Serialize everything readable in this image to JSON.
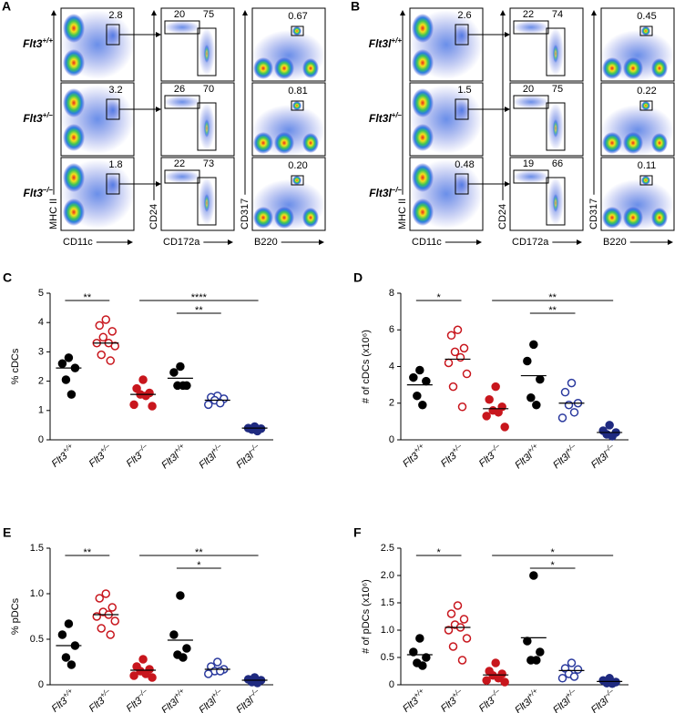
{
  "flow": [
    {
      "panel": "A",
      "genotypes": [
        "Flt3+/+",
        "Flt3+/–",
        "Flt3–/–"
      ],
      "y_labels": [
        "MHC II",
        "CD24",
        "CD317"
      ],
      "x_labels": [
        "CD11c",
        "CD172a",
        "B220"
      ],
      "gates": [
        [
          "2.8",
          "20",
          "75",
          "0.67"
        ],
        [
          "3.2",
          "26",
          "70",
          "0.81"
        ],
        [
          "1.8",
          "22",
          "73",
          "0.20"
        ]
      ]
    },
    {
      "panel": "B",
      "genotypes": [
        "Flt3l+/+",
        "Flt3l+/–",
        "Flt3l–/–"
      ],
      "y_labels": [
        "MHC II",
        "CD24",
        "CD317"
      ],
      "x_labels": [
        "CD11c",
        "CD172a",
        "B220"
      ],
      "gates": [
        [
          "2.6",
          "22",
          "74",
          "0.45"
        ],
        [
          "1.5",
          "20",
          "75",
          "0.22"
        ],
        [
          "0.48",
          "19",
          "66",
          "0.11"
        ]
      ]
    }
  ],
  "chart_data": [
    {
      "type": "dot",
      "panel": "C",
      "y_label": "% cDCs",
      "categories": [
        "Flt3+/+",
        "Flt3+/–",
        "Flt3–/–",
        "Flt3l+/+",
        "Flt3l+/–",
        "Flt3l–/–"
      ],
      "colors": [
        "#000000",
        "#c8161d",
        "#c8161d",
        "#000000",
        "#2b3a9e",
        "#1f2a80"
      ],
      "filled": [
        true,
        false,
        true,
        true,
        false,
        true
      ],
      "values": [
        [
          2.8,
          2.6,
          2.45,
          2.05,
          1.55
        ],
        [
          4.1,
          3.9,
          3.7,
          3.5,
          3.3,
          3.3,
          3.2,
          2.9,
          2.7
        ],
        [
          2.05,
          1.75,
          1.6,
          1.55,
          1.5,
          1.2,
          1.15
        ],
        [
          2.5,
          2.3,
          1.85,
          1.85,
          1.85
        ],
        [
          1.5,
          1.45,
          1.4,
          1.35,
          1.25,
          1.2
        ],
        [
          0.45,
          0.4,
          0.38,
          0.35,
          0.3
        ]
      ],
      "means": [
        2.45,
        3.3,
        1.55,
        2.1,
        1.35,
        0.4
      ],
      "ylim": [
        0,
        5
      ],
      "yticks": [
        0,
        1,
        2,
        3,
        4,
        5
      ],
      "annotations": [
        {
          "text": "**",
          "between": [
            "Flt3+/+",
            "Flt3+/–"
          ]
        },
        {
          "text": "****",
          "between": [
            "Flt3–/–",
            "Flt3l–/–"
          ]
        },
        {
          "text": "**",
          "between": [
            "Flt3l+/+",
            "Flt3l+/–"
          ]
        }
      ]
    },
    {
      "type": "dot",
      "panel": "D",
      "y_label": "# of cDCs (x10⁶)",
      "categories": [
        "Flt3+/+",
        "Flt3+/–",
        "Flt3–/–",
        "Flt3l+/+",
        "Flt3l+/–",
        "Flt3l–/–"
      ],
      "colors": [
        "#000000",
        "#c8161d",
        "#c8161d",
        "#000000",
        "#2b3a9e",
        "#1f2a80"
      ],
      "filled": [
        true,
        false,
        true,
        true,
        false,
        true
      ],
      "values": [
        [
          3.8,
          3.4,
          3.2,
          2.4,
          1.9
        ],
        [
          6.0,
          5.7,
          5.0,
          4.8,
          4.5,
          4.2,
          3.6,
          2.9,
          1.8
        ],
        [
          2.9,
          2.2,
          1.8,
          1.6,
          1.5,
          1.3,
          0.7
        ],
        [
          5.2,
          4.3,
          3.3,
          2.3,
          1.9
        ],
        [
          3.1,
          2.6,
          2.0,
          1.9,
          1.5,
          1.2
        ],
        [
          0.8,
          0.5,
          0.4,
          0.3,
          0.2
        ]
      ],
      "means": [
        3.0,
        4.4,
        1.7,
        3.5,
        2.0,
        0.4
      ],
      "ylim": [
        0,
        8
      ],
      "yticks": [
        0,
        2,
        4,
        6,
        8
      ],
      "annotations": [
        {
          "text": "*",
          "between": [
            "Flt3+/+",
            "Flt3+/–"
          ]
        },
        {
          "text": "**",
          "between": [
            "Flt3–/–",
            "Flt3l–/–"
          ]
        },
        {
          "text": "**",
          "between": [
            "Flt3l+/+",
            "Flt3l+/–"
          ]
        }
      ]
    },
    {
      "type": "dot",
      "panel": "E",
      "y_label": "% pDCs",
      "categories": [
        "Flt3+/+",
        "Flt3+/–",
        "Flt3–/–",
        "Flt3l+/+",
        "Flt3l+/–",
        "Flt3l–/–"
      ],
      "colors": [
        "#000000",
        "#c8161d",
        "#c8161d",
        "#000000",
        "#2b3a9e",
        "#1f2a80"
      ],
      "filled": [
        true,
        false,
        true,
        true,
        false,
        true
      ],
      "values": [
        [
          0.67,
          0.55,
          0.43,
          0.3,
          0.22
        ],
        [
          1.0,
          0.95,
          0.85,
          0.8,
          0.77,
          0.75,
          0.7,
          0.62,
          0.55
        ],
        [
          0.28,
          0.2,
          0.17,
          0.15,
          0.12,
          0.1,
          0.08
        ],
        [
          0.98,
          0.55,
          0.4,
          0.33,
          0.3
        ],
        [
          0.25,
          0.2,
          0.17,
          0.15,
          0.15,
          0.12
        ],
        [
          0.08,
          0.06,
          0.05,
          0.03,
          0.02
        ]
      ],
      "means": [
        0.43,
        0.77,
        0.16,
        0.49,
        0.17,
        0.05
      ],
      "ylim": [
        0,
        1.5
      ],
      "yticks": [
        0,
        0.5,
        {
          "value": 1,
          "label": "1.0"
        },
        1.5
      ],
      "annotations": [
        {
          "text": "**",
          "between": [
            "Flt3+/+",
            "Flt3+/–"
          ]
        },
        {
          "text": "**",
          "between": [
            "Flt3–/–",
            "Flt3l–/–"
          ]
        },
        {
          "text": "*",
          "between": [
            "Flt3l+/+",
            "Flt3l+/–"
          ]
        }
      ]
    },
    {
      "type": "dot",
      "panel": "F",
      "y_label": "# of pDCs (x10⁶)",
      "categories": [
        "Flt3+/+",
        "Flt3+/–",
        "Flt3–/–",
        "Flt3l+/+",
        "Flt3l+/–",
        "Flt3l–/–"
      ],
      "colors": [
        "#000000",
        "#c8161d",
        "#c8161d",
        "#000000",
        "#2b3a9e",
        "#1f2a80"
      ],
      "filled": [
        true,
        false,
        true,
        true,
        false,
        true
      ],
      "values": [
        [
          0.85,
          0.6,
          0.5,
          0.4,
          0.35
        ],
        [
          1.45,
          1.3,
          1.2,
          1.1,
          1.05,
          1.0,
          0.85,
          0.7,
          0.45
        ],
        [
          0.4,
          0.25,
          0.2,
          0.17,
          0.12,
          0.08,
          0.05
        ],
        [
          2.0,
          0.8,
          0.6,
          0.45,
          0.45
        ],
        [
          0.4,
          0.3,
          0.28,
          0.2,
          0.15,
          0.12
        ],
        [
          0.12,
          0.08,
          0.05,
          0.03,
          0.02
        ]
      ],
      "means": [
        0.55,
        1.05,
        0.18,
        0.86,
        0.26,
        0.06
      ],
      "ylim": [
        0,
        2.5
      ],
      "yticks": [
        0,
        0.5,
        {
          "value": 1,
          "label": "1.0"
        },
        1.5,
        {
          "value": 2,
          "label": "2.0"
        },
        2.5
      ],
      "annotations": [
        {
          "text": "*",
          "between": [
            "Flt3+/+",
            "Flt3+/–"
          ]
        },
        {
          "text": "*",
          "between": [
            "Flt3–/–",
            "Flt3l–/–"
          ]
        },
        {
          "text": "*",
          "between": [
            "Flt3l+/+",
            "Flt3l+/–"
          ]
        }
      ]
    }
  ]
}
